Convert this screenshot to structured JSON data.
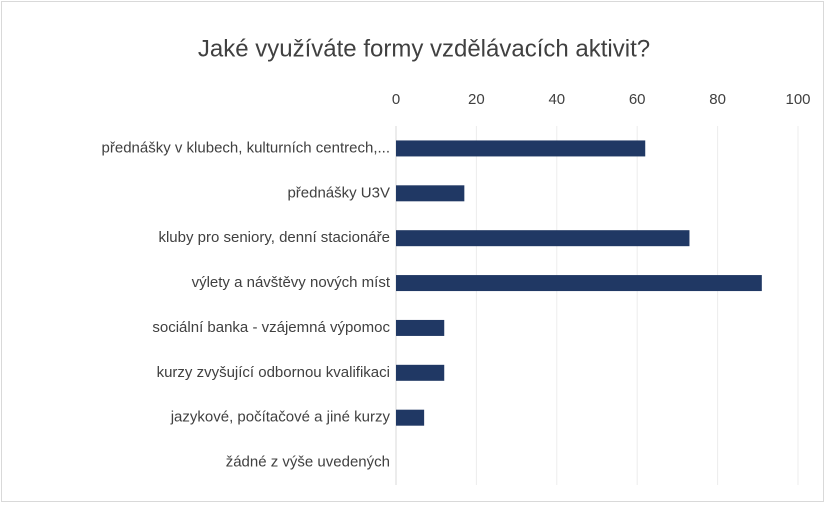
{
  "chart_data": {
    "type": "barh",
    "title": "Jaké využíváte formy vzdělávacích aktivit?",
    "categories": [
      "přednášky v klubech, kulturních centrech,...",
      "přednášky U3V",
      "kluby pro seniory, denní stacionáře",
      "výlety a návštěvy nových míst",
      "sociální banka - vzájemná výpomoc",
      "kurzy zvyšující odbornou kvalifikaci",
      "jazykové, počítačové a jiné kurzy",
      "žádné z výše uvedených"
    ],
    "values": [
      62,
      17,
      73,
      91,
      12,
      12,
      7,
      0
    ],
    "color": "#203864",
    "xlim": [
      0,
      100
    ],
    "xticks": [
      0,
      20,
      40,
      60,
      80,
      100
    ],
    "grid": true
  }
}
